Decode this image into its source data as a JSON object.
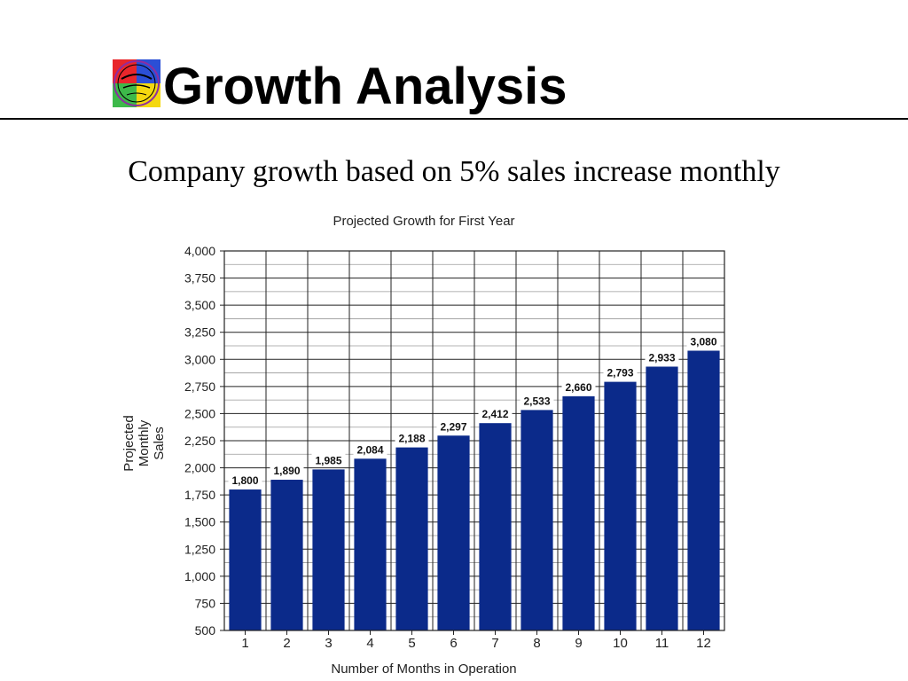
{
  "slide": {
    "title": "Growth Analysis",
    "subtitle": "Company growth based on 5% sales increase monthly",
    "logo_icon": "club-logo-icon",
    "logo_colors": [
      "#e8262b",
      "#2b4fd6",
      "#f4d80f",
      "#3db94a",
      "#8e2da0"
    ]
  },
  "chart_data": {
    "type": "bar",
    "title": "Projected Growth for First Year",
    "xlabel": "Number of Months in Operation",
    "ylabel_lines": [
      "Projected",
      "Monthly",
      "Sales"
    ],
    "categories": [
      "1",
      "2",
      "3",
      "4",
      "5",
      "6",
      "7",
      "8",
      "9",
      "10",
      "11",
      "12"
    ],
    "values": [
      1800,
      1890,
      1985,
      2084,
      2188,
      2297,
      2412,
      2533,
      2660,
      2793,
      2933,
      3080
    ],
    "value_labels": [
      "1,800",
      "1,890",
      "1,985",
      "2,084",
      "2,188",
      "2,297",
      "2,412",
      "2,533",
      "2,660",
      "2,793",
      "2,933",
      "3,080"
    ],
    "ylim": [
      500,
      4000
    ],
    "yticks": [
      500,
      750,
      1000,
      1250,
      1500,
      1750,
      2000,
      2250,
      2500,
      2750,
      3000,
      3250,
      3500,
      3750,
      4000
    ],
    "ytick_labels": [
      "500",
      "750",
      "1,000",
      "1,250",
      "1,500",
      "1,750",
      "2,000",
      "2,250",
      "2,500",
      "2,750",
      "3,000",
      "3,250",
      "3,500",
      "3,750",
      "4,000"
    ],
    "grid": true,
    "bar_color": "#0b2a8a"
  }
}
